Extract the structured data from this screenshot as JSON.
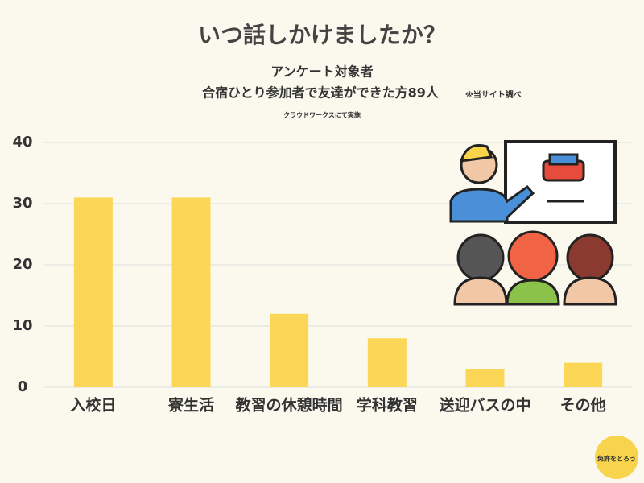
{
  "chart_data": {
    "type": "bar",
    "title": "いつ話しかけましたか？",
    "subtitle": "アンケート対象者",
    "subtitle2": "合宿ひとり参加者で友達ができた方89人",
    "note": "※当サイト調べ",
    "source": "クラウドワークスにて実施",
    "categories": [
      "入校日",
      "寮生活",
      "教習の休憩時間",
      "学科教習",
      "送迎バスの中",
      "その他"
    ],
    "values": [
      31,
      31,
      12,
      8,
      3,
      4
    ],
    "color": "#fcd757",
    "ylim": [
      0,
      40
    ],
    "yticks": [
      0,
      10,
      20,
      30,
      40
    ],
    "grid": true
  },
  "logo": {
    "text": "免許をとろう"
  }
}
